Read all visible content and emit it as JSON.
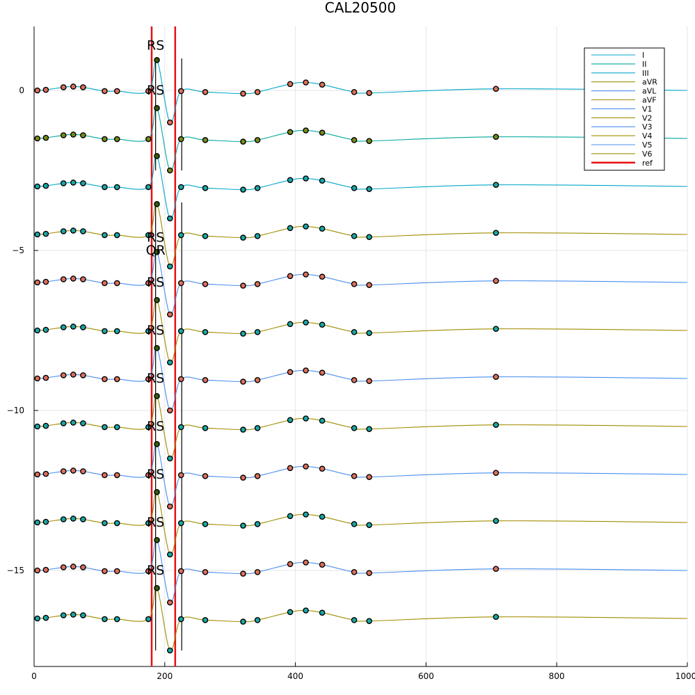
{
  "chart_data": {
    "type": "line",
    "title": "CAL20500",
    "xlabel": "",
    "ylabel": "",
    "xlim": [
      0,
      1000
    ],
    "ylim": [
      -18,
      2
    ],
    "x_ticks": [
      0,
      200,
      400,
      600,
      800,
      1000
    ],
    "x_tick_labels": [
      "0",
      "200",
      "400",
      "600",
      "800",
      "1000"
    ],
    "y_ticks": [
      0,
      -5,
      -10,
      -15
    ],
    "y_tick_labels": [
      "0",
      "−5",
      "−10",
      "−15"
    ],
    "grid": true,
    "legend_position": "top-right",
    "template": {
      "x": [
        5,
        18,
        45,
        60,
        75,
        108,
        127,
        175,
        188,
        208,
        225,
        262,
        320,
        342,
        392,
        416,
        441,
        490,
        513,
        707,
        1000
      ],
      "dy": [
        0.0,
        0.02,
        0.1,
        0.12,
        0.1,
        -0.02,
        -0.02,
        -0.02,
        0.95,
        -1.0,
        -0.02,
        -0.05,
        -0.1,
        -0.05,
        0.2,
        0.25,
        0.18,
        -0.05,
        -0.08,
        0.05,
        0.0
      ]
    },
    "series": [
      {
        "name": "I",
        "color": "#00a8c8",
        "offset": 0.0,
        "marker": "#e0705a"
      },
      {
        "name": "II",
        "color": "#00a89a",
        "offset": -1.5,
        "marker": "#7a8a1a"
      },
      {
        "name": "III",
        "color": "#00a8c8",
        "offset": -3.0,
        "marker": "#1aa8a8"
      },
      {
        "name": "aVR",
        "color": "#a08c00",
        "offset": -4.5,
        "marker": "#1aa8a8"
      },
      {
        "name": "aVL",
        "color": "#4a8ef0",
        "offset": -6.0,
        "marker": "#e0705a"
      },
      {
        "name": "aVF",
        "color": "#a08c00",
        "offset": -7.5,
        "marker": "#1aa8a8"
      },
      {
        "name": "V1",
        "color": "#4a8ef0",
        "offset": -9.0,
        "marker": "#e0705a"
      },
      {
        "name": "V2",
        "color": "#a08c00",
        "offset": -10.5,
        "marker": "#1aa8a8"
      },
      {
        "name": "V3",
        "color": "#4a8ef0",
        "offset": -12.0,
        "marker": "#e0705a"
      },
      {
        "name": "V4",
        "color": "#a08c00",
        "offset": -13.5,
        "marker": "#1aa8a8"
      },
      {
        "name": "V5",
        "color": "#4a8ef0",
        "offset": -15.0,
        "marker": "#e0705a"
      },
      {
        "name": "V6",
        "color": "#a08c00",
        "offset": -16.5,
        "marker": "#1aa8a8"
      }
    ],
    "peak_marker_color": "#2e5e0e",
    "reference_lines": {
      "name": "ref",
      "x": [
        180,
        216
      ],
      "color": "#e81010"
    },
    "black_vlines": [
      {
        "x": 186,
        "y0": -2.5,
        "y1": 1.0
      },
      {
        "x": 226,
        "y0": -2.5,
        "y1": 1.0
      },
      {
        "x": 186,
        "y0": -17.5,
        "y1": -3.5
      },
      {
        "x": 226,
        "y0": -17.5,
        "y1": -3.5
      }
    ],
    "annotations": [
      {
        "text": "RS",
        "x": 186,
        "y": 1.4
      },
      {
        "text": "RS",
        "x": 186,
        "y": 0.0
      },
      {
        "text": "RS",
        "x": 186,
        "y": -4.6
      },
      {
        "text": "QR",
        "x": 186,
        "y": -5.0
      },
      {
        "text": "RS",
        "x": 186,
        "y": -6.0
      },
      {
        "text": "RS",
        "x": 186,
        "y": -7.5
      },
      {
        "text": "RS",
        "x": 186,
        "y": -9.0
      },
      {
        "text": "RS",
        "x": 186,
        "y": -10.5
      },
      {
        "text": "RS",
        "x": 186,
        "y": -12.0
      },
      {
        "text": "RS",
        "x": 186,
        "y": -13.5
      },
      {
        "text": "RS",
        "x": 186,
        "y": -15.0
      }
    ]
  }
}
